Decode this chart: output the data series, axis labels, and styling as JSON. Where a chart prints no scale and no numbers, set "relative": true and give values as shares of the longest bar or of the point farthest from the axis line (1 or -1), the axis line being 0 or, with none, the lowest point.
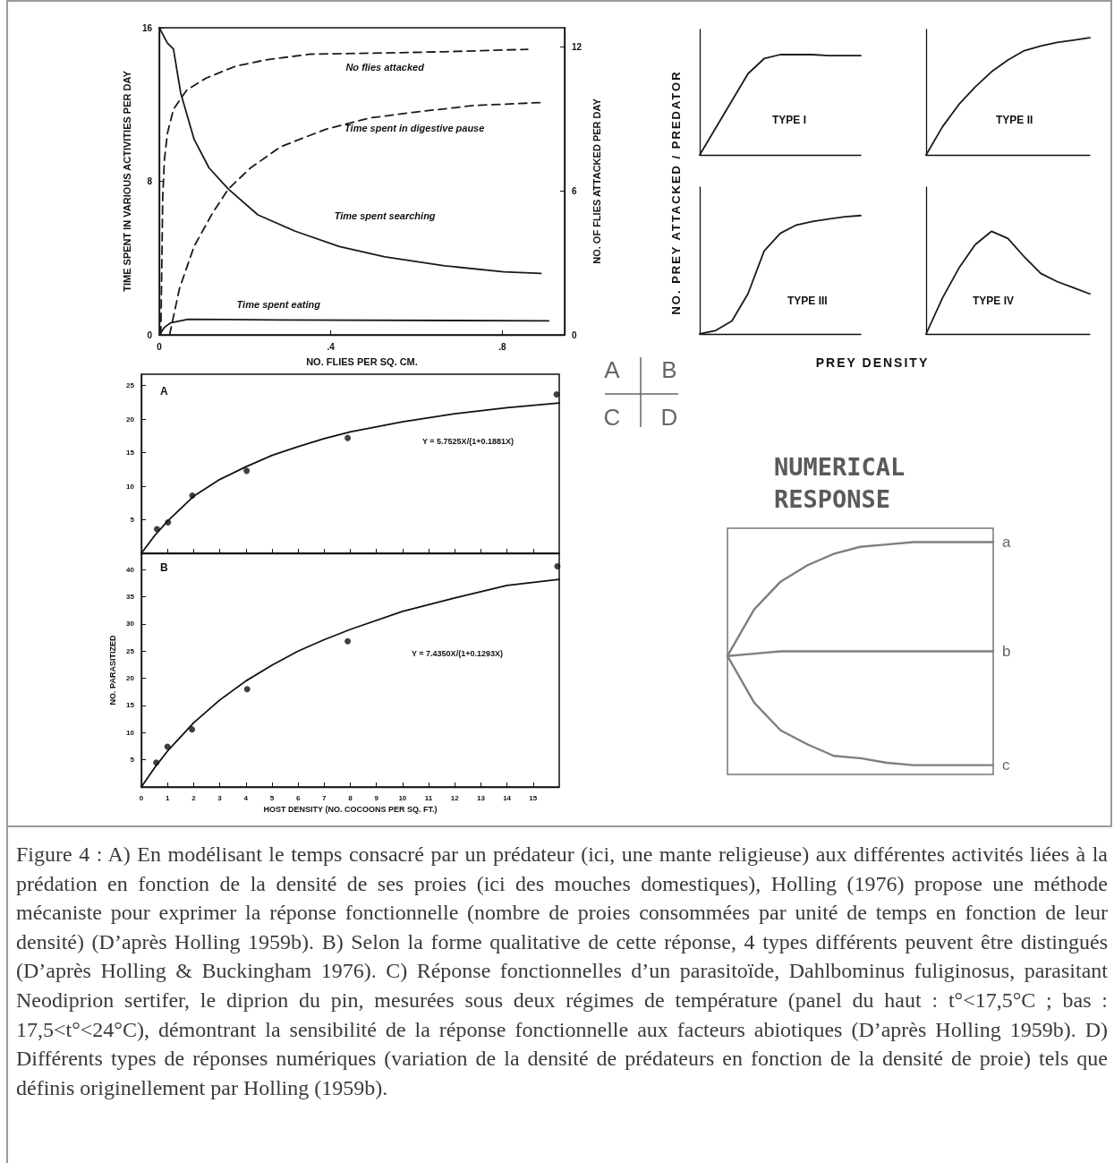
{
  "chart_data": [
    {
      "type": "line",
      "xlabel": "NO. FLIES PER SQ. CM.",
      "ylabel": "TIME SPENT IN VARIOUS ACTIVITIES PER DAY",
      "y2label": "NO. OF FLIES ATTACKED PER DAY",
      "xlim": [
        0,
        0.945
      ],
      "xticks": [
        0,
        {
          "value": 0.4,
          "label": ".4"
        },
        {
          "value": 0.8,
          "label": ".8"
        }
      ],
      "ylim": [
        0,
        16
      ],
      "yticks": [
        0,
        8,
        16
      ],
      "y2lim": [
        0,
        12.8
      ],
      "y2ticks": [
        0,
        6,
        12
      ],
      "series": [
        {
          "name": "No flies attacked",
          "color": "#1a1a1a",
          "axis": "y2",
          "line_style": "dashed",
          "x": [
            0.0035,
            0.006,
            0.008,
            0.012,
            0.019,
            0.033,
            0.064,
            0.109,
            0.178,
            0.248,
            0.352,
            0.526,
            0.665,
            0.859
          ],
          "values": [
            0,
            3,
            5.7,
            7.3,
            8.4,
            9.4,
            10.2,
            10.7,
            11.2,
            11.46,
            11.7,
            11.75,
            11.8,
            11.9
          ]
        },
        {
          "name": "Time spent in digestive pause",
          "color": "#1a1a1a",
          "line_style": "dashed",
          "x": [
            0.024,
            0.047,
            0.081,
            0.123,
            0.161,
            0.213,
            0.283,
            0.387,
            0.491,
            0.595,
            0.734,
            0.887
          ],
          "values": [
            0,
            2.4,
            4.6,
            6.3,
            7.6,
            8.7,
            9.8,
            10.7,
            11.3,
            11.6,
            11.95,
            12.1
          ]
        },
        {
          "name": "Time spent searching",
          "color": "#1a1a1a",
          "line_style": "solid",
          "x": [
            0,
            0.019,
            0.033,
            0.05,
            0.081,
            0.116,
            0.161,
            0.23,
            0.317,
            0.42,
            0.526,
            0.665,
            0.803,
            0.89
          ],
          "values": [
            16,
            15.2,
            14.9,
            12.6,
            10.2,
            8.7,
            7.6,
            6.25,
            5.4,
            4.6,
            4.06,
            3.6,
            3.28,
            3.2
          ]
        },
        {
          "name": "Time spent eating",
          "color": "#1a1a1a",
          "line_style": "solid",
          "x": [
            0,
            0.012,
            0.026,
            0.067,
            0.278,
            0.908
          ],
          "values": [
            0,
            0.39,
            0.62,
            0.81,
            0.78,
            0.73
          ]
        }
      ]
    },
    {
      "type": "line",
      "title": "TYPE I",
      "ylabel": "NO. PREY ATTACKED / PREDATOR",
      "relative": true,
      "categories": [
        null,
        null,
        null,
        null,
        null,
        null,
        null,
        null,
        null,
        null,
        null
      ],
      "color": "#1a1a1a",
      "values": [
        0,
        0.27,
        0.54,
        0.81,
        0.96,
        1,
        1,
        1,
        0.99,
        0.99,
        0.99
      ]
    },
    {
      "type": "line",
      "title": "TYPE II",
      "relative": true,
      "categories": [
        null,
        null,
        null,
        null,
        null,
        null,
        null,
        null,
        null,
        null,
        null
      ],
      "color": "#1a1a1a",
      "values": [
        0,
        0.24,
        0.43,
        0.58,
        0.71,
        0.81,
        0.89,
        0.93,
        0.96,
        0.98,
        1
      ]
    },
    {
      "type": "line",
      "title": "TYPE III",
      "xlabel": "PREY DENSITY",
      "relative": true,
      "categories": [
        null,
        null,
        null,
        null,
        null,
        null,
        null,
        null,
        null,
        null,
        null
      ],
      "color": "#1a1a1a",
      "values": [
        0,
        0.03,
        0.11,
        0.34,
        0.7,
        0.85,
        0.92,
        0.95,
        0.97,
        0.99,
        1
      ]
    },
    {
      "type": "line",
      "title": "TYPE IV",
      "relative": true,
      "categories": [
        null,
        null,
        null,
        null,
        null,
        null,
        null,
        null,
        null,
        null,
        null
      ],
      "color": "#1a1a1a",
      "values": [
        0,
        0.35,
        0.64,
        0.87,
        1,
        0.93,
        0.75,
        0.59,
        0.51,
        0.45,
        0.39
      ]
    },
    {
      "type": "scatter",
      "title": "A",
      "annotations": [
        "Y = 5.7525X/(1+0.1881X)"
      ],
      "xlim": [
        0,
        16
      ],
      "xticks": [
        0,
        1,
        2,
        3,
        4,
        5,
        6,
        7,
        8,
        9,
        10,
        11,
        12,
        13,
        14,
        15
      ],
      "ylim": [
        0,
        26.7
      ],
      "yticks": [
        5,
        10,
        15,
        20,
        25
      ],
      "tick_labels": "y",
      "series": [
        {
          "type": "scatter",
          "color": "#111111",
          "marker": "circle",
          "x": [
            0.6,
            1.02,
            1.95,
            4.03,
            7.9,
            15.9
          ],
          "values": [
            3.6,
            4.6,
            8.6,
            12.3,
            17.2,
            23.7
          ]
        },
        {
          "type": "line",
          "color": "#111111",
          "x": [
            0,
            0.5,
            1,
            2,
            3,
            4,
            5,
            6,
            7,
            8,
            10,
            12,
            14,
            16
          ],
          "values": [
            0,
            2.6,
            4.8,
            8.5,
            11,
            12.9,
            14.6,
            15.9,
            17.1,
            18.1,
            19.6,
            20.8,
            21.7,
            22.4
          ]
        }
      ]
    },
    {
      "type": "scatter",
      "title": "B",
      "xlabel": "HOST DENSITY (NO. COCOONS PER SQ. FT.)",
      "ylabel": "NO. PARASITIZED",
      "annotations": [
        "Y = 7.4350X/(1+0.1293X)"
      ],
      "xlim": [
        0,
        16
      ],
      "xticks": [
        0,
        1,
        2,
        3,
        4,
        5,
        6,
        7,
        8,
        9,
        10,
        11,
        12,
        13,
        14,
        15
      ],
      "ylim": [
        0,
        43
      ],
      "yticks": [
        5,
        10,
        15,
        20,
        25,
        30,
        35,
        40
      ],
      "series": [
        {
          "type": "scatter",
          "color": "#111111",
          "marker": "circle",
          "x": [
            0.57,
            1,
            1.94,
            4.05,
            7.9,
            15.93
          ],
          "values": [
            4.5,
            7.4,
            10.6,
            18,
            26.8,
            40.6
          ]
        },
        {
          "type": "line",
          "color": "#111111",
          "x": [
            0,
            0.5,
            1,
            2,
            3,
            4,
            5,
            6,
            7,
            8,
            10,
            12,
            14,
            16
          ],
          "values": [
            0,
            3.5,
            6.6,
            11.8,
            16,
            19.5,
            22.4,
            25,
            27.1,
            29,
            32.3,
            34.8,
            37.1,
            38.2
          ]
        }
      ]
    },
    {
      "type": "line",
      "title": "NUMERICAL RESPONSE",
      "relative": true,
      "categories": [
        null,
        null,
        null,
        null,
        null,
        null,
        null,
        null,
        null,
        null,
        null
      ],
      "series": [
        {
          "name": "a",
          "color": "#7f7f7f",
          "values": [
            0.51,
            0.71,
            0.83,
            0.9,
            0.95,
            0.98,
            0.99,
            1,
            1,
            1,
            1
          ]
        },
        {
          "name": "b",
          "color": "#7f7f7f",
          "values": [
            0.51,
            0.52,
            0.53,
            0.53,
            0.53,
            0.53,
            0.53,
            0.53,
            0.53,
            0.53,
            0.53
          ]
        },
        {
          "name": "c",
          "color": "#7f7f7f",
          "values": [
            0.51,
            0.31,
            0.19,
            0.13,
            0.08,
            0.07,
            0.05,
            0.04,
            0.04,
            0.04,
            0.04
          ]
        }
      ]
    },
    {
      "type": "other",
      "annotations": [
        "A",
        "B",
        "C",
        "D"
      ]
    },
    {
      "type": "other",
      "annotations": [
        "Figure 4 : A) En modélisant le temps consacré par un prédateur (ici, une mante religieuse) aux différentes activités liées à la prédation en fonction de la densité de ses proies (ici des mouches domestiques), Holling (1976) propose une méthode mécaniste pour exprimer la réponse fonctionnelle (nombre de proies consommées par unité de temps en fonction de leur densité) (D’après Holling 1959b). B) Selon la forme qualitative de cette réponse, 4 types différents peuvent être distingués (D’après Holling & Buckingham 1976). C) Réponse fonctionnelles d’un parasitoïde, Dahlbominus fuliginosus, parasitant Neodiprion sertifer, le diprion du pin, mesurées sous deux régimes de température (panel du haut : t°<17,5°C ; bas : 17,5<t°<24°C), démontrant la sensibilité de la réponse fonctionnelle aux facteurs abiotiques (D’après Holling 1959b). D) Différents types de réponses numériques (variation de la densité de prédateurs en fonction de la densité de proie) tels que définis originellement par Holling (1959b)."
      ]
    }
  ]
}
